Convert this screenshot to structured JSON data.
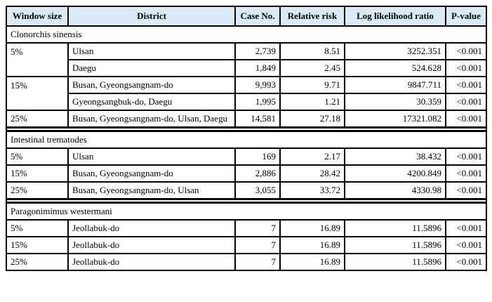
{
  "header_bg": "#dbeaf8",
  "columns": [
    "Window size",
    "District",
    "Case No.",
    "Relative risk",
    "Log likelihood ratio",
    "P-value"
  ],
  "groups": [
    {
      "name": "Clonorchis sinensis",
      "rows": [
        {
          "window": "5%",
          "span": 2,
          "district": "Ulsan",
          "cases": "2,739",
          "rr": "8.51",
          "llr": "3252.351",
          "p": "<0.001"
        },
        {
          "district": "Daegu",
          "cases": "1,849",
          "rr": "2.45",
          "llr": "524.628",
          "p": "<0.001"
        },
        {
          "window": "15%",
          "span": 2,
          "district": "Busan, Gyeongsangnam-do",
          "cases": "9,993",
          "rr": "9.71",
          "llr": "9847.711",
          "p": "<0.001"
        },
        {
          "district": "Gyeongsangbuk-do, Daegu",
          "cases": "1,995",
          "rr": "1.21",
          "llr": "30.359",
          "p": "<0.001"
        },
        {
          "window": "25%",
          "span": 1,
          "district": "Busan, Gyeongsangnam-do, Ulsan, Daegu",
          "cases": "14,581",
          "rr": "27.18",
          "llr": "17321.082",
          "p": "<0.001"
        }
      ]
    },
    {
      "name": "Intestinal trematodes",
      "rows": [
        {
          "window": "5%",
          "span": 1,
          "district": "Ulsan",
          "cases": "169",
          "rr": "2.17",
          "llr": "38.432",
          "p": "<0.001"
        },
        {
          "window": "15%",
          "span": 1,
          "district": "Busan, Gyeongsangnam-do",
          "cases": "2,886",
          "rr": "28.42",
          "llr": "4200.849",
          "p": "<0.001"
        },
        {
          "window": "25%",
          "span": 1,
          "district": "Busan, Gyeongsangnam-do, Ulsan",
          "cases": "3,055",
          "rr": "33.72",
          "llr": "4330.98",
          "p": "<0.001"
        }
      ]
    },
    {
      "name": "Paragonimimus westermani",
      "rows": [
        {
          "window": "5%",
          "span": 1,
          "district": "Jeollabuk-do",
          "cases": "7",
          "rr": "16.89",
          "llr": "11.5896",
          "p": "<0.001"
        },
        {
          "window": "15%",
          "span": 1,
          "district": "Jeollabuk-do",
          "cases": "7",
          "rr": "16.89",
          "llr": "11.5896",
          "p": "<0.001"
        },
        {
          "window": "25%",
          "span": 1,
          "district": "Jeollabuk-do",
          "cases": "7",
          "rr": "16.89",
          "llr": "11.5896",
          "p": "<0.001"
        }
      ]
    }
  ]
}
